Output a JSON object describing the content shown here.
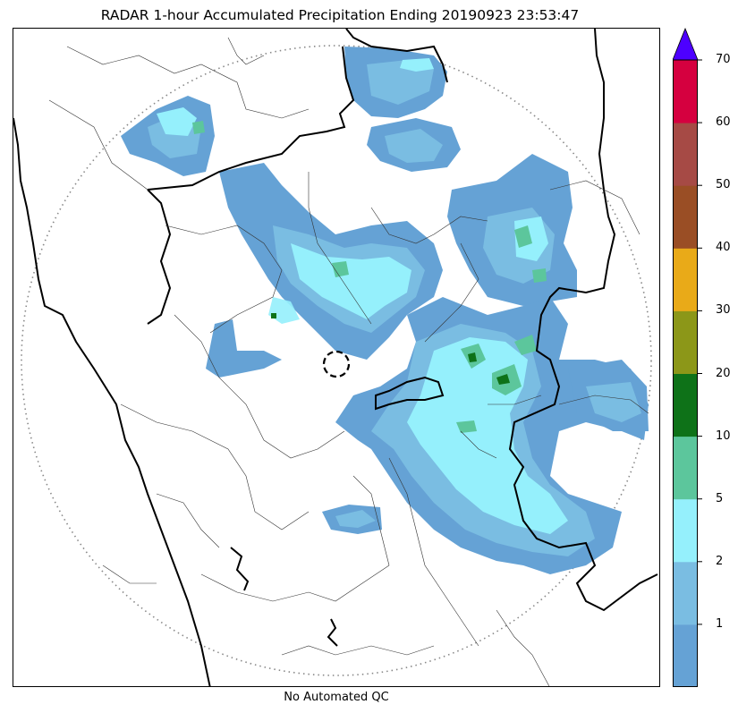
{
  "title": "RADAR 1-hour Accumulated Precipitation Ending 20190923 23:53:47",
  "footer": "No Automated QC",
  "legend": {
    "levels": [
      "1",
      "2",
      "5",
      "10",
      "20",
      "30",
      "40",
      "50",
      "60",
      "70"
    ],
    "colors": [
      "#65a2d5",
      "#7abde2",
      "#95f0fc",
      "#5cc69c",
      "#0e7218",
      "#8c9718",
      "#e9aa18",
      "#9a4e25",
      "#a64a45",
      "#d5003f"
    ],
    "over_color": "#4d00ff"
  },
  "map": {
    "rain_colors": {
      "light": "#65a2d5",
      "moderate": "#7abde2",
      "heavy": "#95f0fc",
      "very_heavy": "#5cc69c",
      "intense": "#0e7218"
    },
    "range_ring": "dotted",
    "radar_site_marker": "dashed-circle"
  }
}
